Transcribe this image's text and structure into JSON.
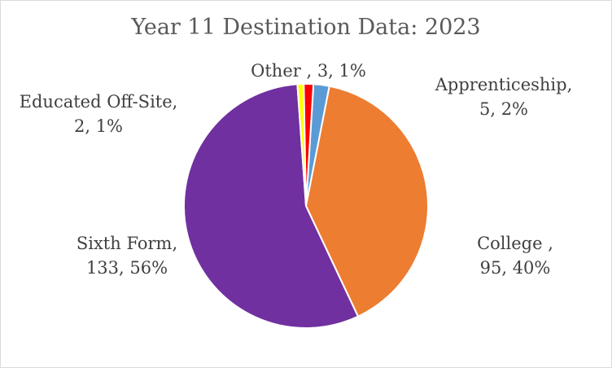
{
  "chart_data": {
    "type": "pie",
    "title": "Year 11 Destination Data: 2023",
    "slices": [
      {
        "name": "Apprenticeship,",
        "value": 5,
        "percent": "2%",
        "color": "#5b9bd5",
        "label_lines": [
          "Apprenticeship,",
          "5, 2%"
        ]
      },
      {
        "name": "College ,",
        "value": 95,
        "percent": "40%",
        "color": "#ed7d31",
        "label_lines": [
          "College ,",
          "95, 40%"
        ]
      },
      {
        "name": "Sixth Form,",
        "value": 133,
        "percent": "56%",
        "color": "#7030a0",
        "label_lines": [
          "Sixth Form,",
          "133, 56%"
        ]
      },
      {
        "name": "Educated Off-Site,",
        "value": 2,
        "percent": "1%",
        "color": "#ffff00",
        "label_lines": [
          "Educated Off-Site,",
          "2, 1%"
        ]
      },
      {
        "name": "Other ,",
        "value": 3,
        "percent": "1%",
        "color": "#ff0000",
        "label_lines": [
          "Other , 3, 1%"
        ]
      }
    ]
  }
}
